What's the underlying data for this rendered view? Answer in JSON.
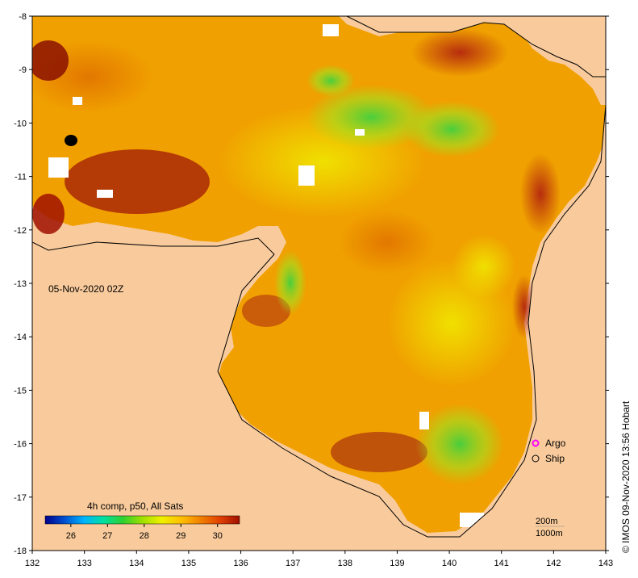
{
  "map": {
    "date_label": "05-Nov-2020 02Z",
    "credit": "© IMOS 09-Nov-2020 13:56 Hobart",
    "land_color": "#f9cb9c",
    "x_ticks": [
      "132",
      "133",
      "134",
      "135",
      "136",
      "137",
      "138",
      "139",
      "140",
      "141",
      "142",
      "143"
    ],
    "y_ticks": [
      "-8",
      "-9",
      "-10",
      "-11",
      "-12",
      "-13",
      "-14",
      "-15",
      "-16",
      "-17",
      "-18"
    ]
  },
  "legend": {
    "items": [
      {
        "label": "Argo",
        "color": "#ff00ff",
        "icon": "argo-marker-icon"
      },
      {
        "label": "Ship",
        "color": "#000000",
        "icon": "ship-marker-icon"
      }
    ]
  },
  "colorbar": {
    "title": "4h comp, p50, All Sats",
    "ticks": [
      "26",
      "27",
      "28",
      "29",
      "30"
    ],
    "colors": [
      "#00008b",
      "#0050d0",
      "#00b4ff",
      "#00e0a0",
      "#30d030",
      "#a0e000",
      "#f0f000",
      "#ffc000",
      "#f08000",
      "#e04000",
      "#a01000"
    ]
  },
  "scale": {
    "contour_200": "200m",
    "contour_1000": "1000m"
  }
}
